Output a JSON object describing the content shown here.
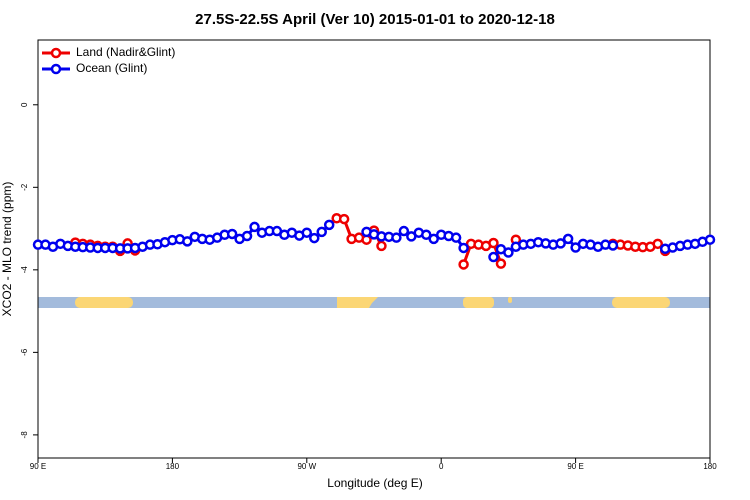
{
  "chart_data": {
    "type": "line",
    "title": "27.5S-22.5S April (Ver 10)   2015-01-01 to 2020-12-18",
    "x_label": "Longitude (deg E)",
    "y_label": "XCO2 - MLO trend (ppm)",
    "x": [
      90,
      95,
      100,
      105,
      110,
      115,
      120,
      125,
      130,
      135,
      140,
      145,
      150,
      155,
      160,
      165,
      170,
      175,
      180,
      185,
      190,
      195,
      200,
      205,
      210,
      215,
      220,
      225,
      230,
      235,
      240,
      245,
      250,
      255,
      260,
      265,
      270,
      275,
      280,
      285,
      290,
      295,
      300,
      305,
      310,
      315,
      320,
      325,
      330,
      335,
      340,
      345,
      350,
      355,
      360,
      365,
      370,
      375,
      380,
      385,
      390,
      395,
      400,
      405,
      410,
      415,
      420,
      425,
      430,
      435,
      440,
      445,
      450,
      455,
      460,
      465,
      470,
      475,
      480,
      485,
      490,
      495,
      500,
      505,
      510,
      515,
      520,
      525,
      530,
      535,
      540
    ],
    "series": [
      {
        "name": "Land (Nadir&Glint)",
        "color": "#ee0000",
        "values": [
          null,
          null,
          null,
          null,
          null,
          -3.34,
          -3.37,
          -3.39,
          -3.42,
          -3.44,
          -3.44,
          -3.54,
          -3.36,
          -3.53,
          null,
          null,
          null,
          null,
          null,
          null,
          null,
          null,
          null,
          null,
          null,
          null,
          null,
          null,
          null,
          null,
          null,
          null,
          null,
          null,
          null,
          null,
          null,
          null,
          null,
          null,
          -2.75,
          -2.77,
          -3.25,
          -3.22,
          -3.27,
          -3.05,
          -3.42,
          null,
          null,
          null,
          null,
          null,
          null,
          null,
          null,
          null,
          null,
          -3.87,
          -3.37,
          -3.39,
          -3.42,
          -3.35,
          -3.85,
          null,
          -3.27,
          null,
          null,
          null,
          null,
          null,
          null,
          null,
          null,
          null,
          null,
          null,
          null,
          -3.37,
          -3.39,
          -3.41,
          -3.44,
          -3.45,
          -3.44,
          -3.37,
          -3.54,
          null,
          null,
          null,
          null,
          null,
          null
        ]
      },
      {
        "name": "Ocean (Glint)",
        "color": "#0000ee",
        "values": [
          -3.39,
          -3.39,
          -3.44,
          -3.37,
          -3.42,
          -3.44,
          -3.45,
          -3.46,
          -3.47,
          -3.47,
          -3.47,
          -3.48,
          -3.48,
          -3.47,
          -3.44,
          -3.39,
          -3.38,
          -3.33,
          -3.28,
          -3.26,
          -3.31,
          -3.2,
          -3.25,
          -3.27,
          -3.22,
          -3.15,
          -3.13,
          -3.25,
          -3.18,
          -2.96,
          -3.1,
          -3.06,
          -3.06,
          -3.15,
          -3.1,
          -3.17,
          -3.1,
          -3.23,
          -3.08,
          -2.91,
          null,
          null,
          null,
          null,
          -3.08,
          -3.14,
          -3.19,
          -3.2,
          -3.22,
          -3.06,
          -3.19,
          -3.1,
          -3.15,
          -3.25,
          -3.15,
          -3.18,
          -3.22,
          -3.47,
          null,
          null,
          null,
          -3.69,
          -3.5,
          -3.58,
          -3.44,
          -3.39,
          -3.37,
          -3.33,
          -3.36,
          -3.39,
          -3.36,
          -3.25,
          -3.46,
          -3.37,
          -3.39,
          -3.44,
          -3.39,
          -3.41,
          null,
          null,
          null,
          null,
          null,
          null,
          -3.49,
          -3.46,
          -3.42,
          -3.39,
          -3.37,
          -3.32,
          -3.27
        ]
      }
    ],
    "xlim": [
      90,
      540
    ],
    "xticks": [
      {
        "value": 90,
        "label": "90 E"
      },
      180,
      {
        "value": 270,
        "label": "90 W"
      },
      {
        "value": 360,
        "label": "0"
      },
      {
        "value": 450,
        "label": "90 E"
      },
      {
        "value": 540,
        "label": "180"
      }
    ],
    "ylim": [
      -8.56,
      1.57
    ],
    "yticks": [
      0,
      -2,
      -4,
      -6,
      -8
    ],
    "legend": "top-left"
  }
}
